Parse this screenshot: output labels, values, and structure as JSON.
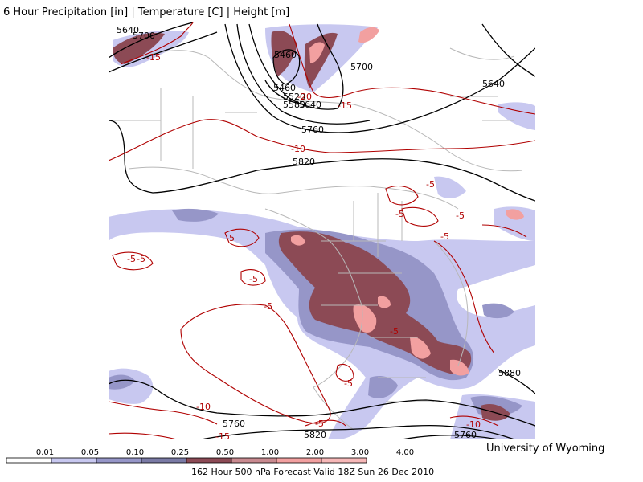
{
  "header": {
    "title": "6 Hour Precipitation [in] | Temperature [C] | Height [m]"
  },
  "footer": {
    "credit": "University of Wyoming",
    "valid": "162 Hour 500 hPa Forecast Valid 18Z Sun 26 Dec 2010"
  },
  "colors": {
    "height_contour": "#000000",
    "temp_contour": "#b00000",
    "border": "#b8b8b8",
    "precip": [
      "#ffffff",
      "#c8c8f0",
      "#9696c8",
      "#7a7aa5",
      "#8c4a55",
      "#c98a90",
      "#f2a0a0",
      "#f7b8b8"
    ]
  },
  "legend": {
    "ticks": [
      "0.01",
      "0.05",
      "0.10",
      "0.25",
      "0.50",
      "1.00",
      "2.00",
      "3.00",
      "4.00"
    ]
  },
  "map": {
    "height_labels": [
      "5640",
      "5700",
      "5460",
      "5700",
      "5460",
      "5520",
      "5580",
      "5640",
      "5640",
      "5760",
      "5820",
      "5760",
      "5820",
      "5760",
      "5880"
    ],
    "temp_labels": [
      "-15",
      "-20",
      "-15",
      "-10",
      "-5",
      "-5",
      "-5",
      "-5",
      "-5",
      "-5",
      "-5",
      "-5",
      "-5",
      "-5",
      "-5",
      "-5",
      "-10",
      "-15",
      "-10"
    ]
  }
}
